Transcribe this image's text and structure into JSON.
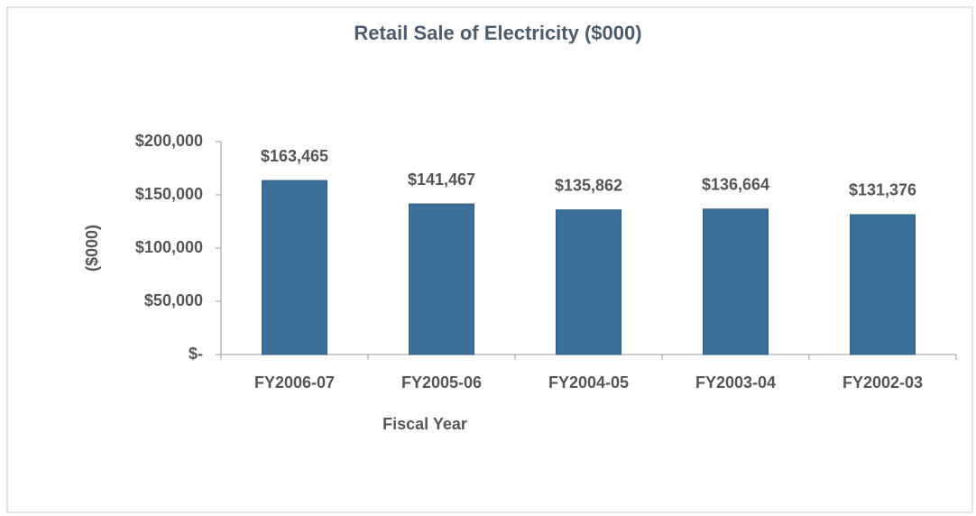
{
  "chart_data": {
    "type": "bar",
    "title": "Retail Sale of Electricity ($000)",
    "x_label": "Fiscal Year",
    "y_label": "($000)",
    "categories": [
      "FY2006-07",
      "FY2005-06",
      "FY2004-05",
      "FY2003-04",
      "FY2002-03"
    ],
    "values": [
      163465,
      141467,
      135862,
      136664,
      131376
    ],
    "value_labels": [
      "$163,465",
      "$141,467",
      "$135,862",
      "$136,664",
      "$131,376"
    ],
    "color": "#3b6f99",
    "ylim": [
      0,
      200000
    ],
    "yticks": [
      {
        "value": 0,
        "label": "$-"
      },
      {
        "value": 50000,
        "label": "$50,000"
      },
      {
        "value": 100000,
        "label": "$100,000"
      },
      {
        "value": 150000,
        "label": "$150,000"
      },
      {
        "value": 200000,
        "label": "$200,000"
      }
    ],
    "grid": false
  }
}
